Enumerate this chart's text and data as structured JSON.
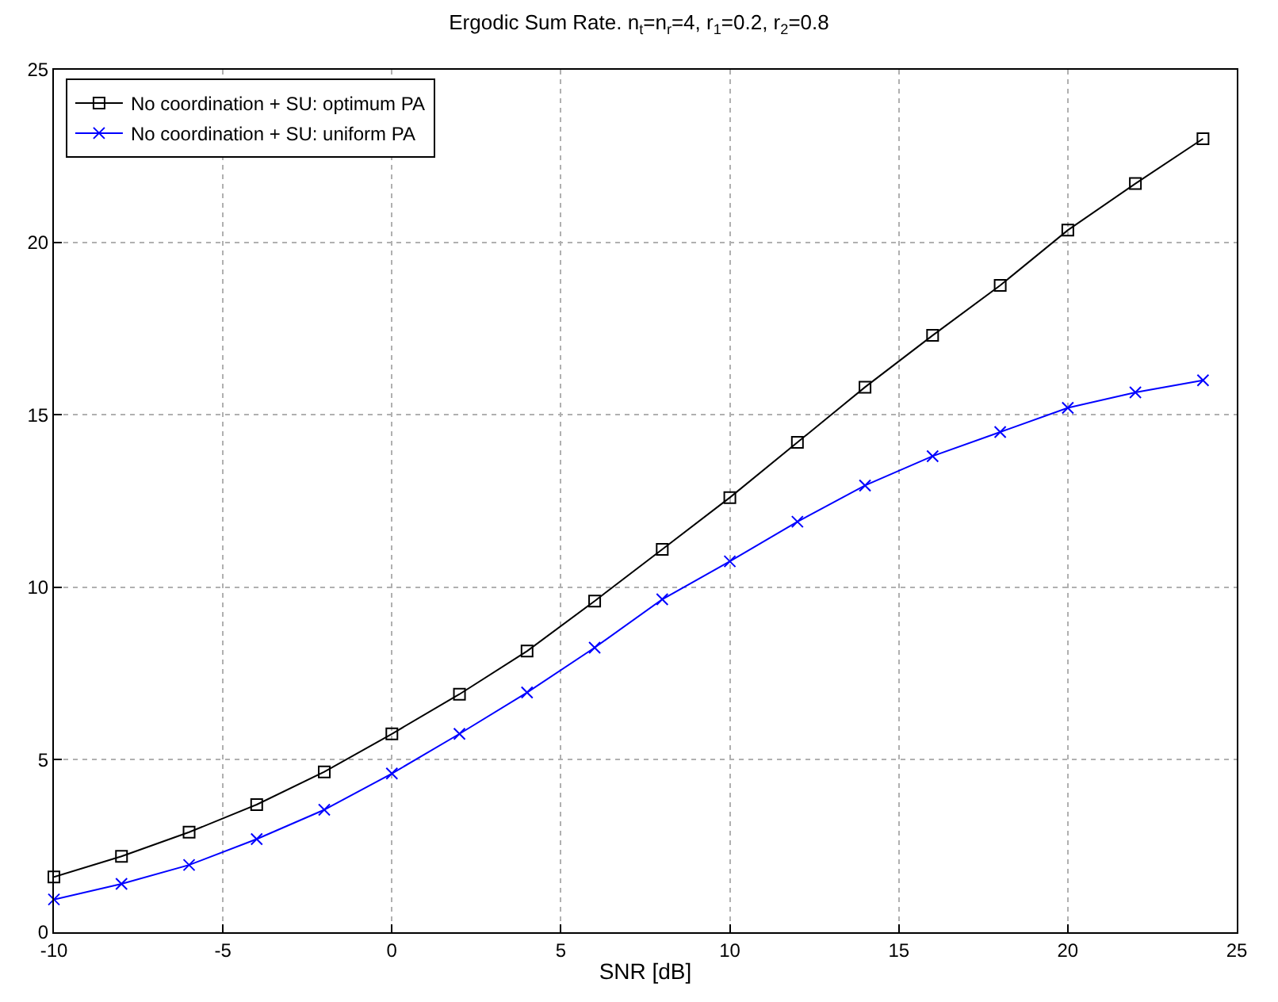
{
  "chart_data": {
    "type": "line",
    "title": "Ergodic Sum Rate. n$_{t}$=n$_{r}$=4, r$_{1}$=0.2, r$_{2}$=0.8",
    "xlabel": "SNR [dB]",
    "x": [
      -10,
      -8,
      -6,
      -4,
      -2,
      0,
      2,
      4,
      6,
      8,
      10,
      12,
      14,
      16,
      18,
      20,
      22,
      24
    ],
    "series": [
      {
        "name": "No coordination + SU: optimum PA",
        "color": "#000000",
        "marker": "square",
        "values": [
          1.6,
          2.2,
          2.9,
          3.7,
          4.65,
          5.75,
          6.9,
          8.15,
          9.6,
          11.1,
          12.6,
          14.2,
          15.8,
          17.3,
          18.75,
          20.35,
          21.7,
          23.0
        ]
      },
      {
        "name": "No coordination + SU: uniform PA",
        "color": "#0000ff",
        "marker": "cross",
        "values": [
          0.95,
          1.4,
          1.95,
          2.7,
          3.55,
          4.6,
          5.75,
          6.95,
          8.25,
          9.65,
          10.75,
          11.9,
          12.95,
          13.8,
          14.5,
          15.2,
          15.65,
          16.0
        ]
      }
    ],
    "xlim": [
      -10,
      25
    ],
    "xticks": [
      -10,
      -5,
      0,
      5,
      10,
      15,
      20,
      25
    ],
    "ylim": [
      0,
      25
    ],
    "yticks": [
      0,
      5,
      10,
      15,
      20,
      25
    ],
    "grid": true,
    "legend": "top left",
    "line_style": "solid"
  }
}
